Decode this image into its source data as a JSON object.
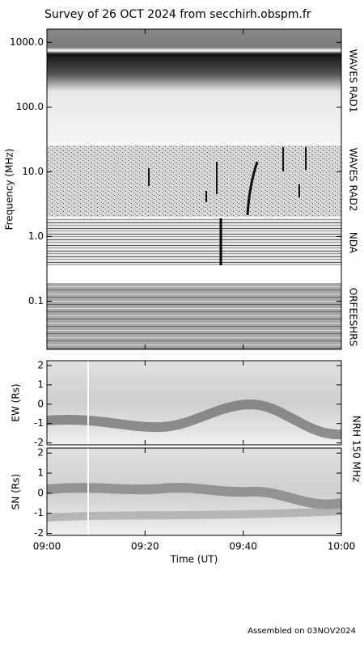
{
  "chart_data": {
    "type": "spectrogram",
    "title": "Survey of 26 OCT 2024 from secchirh.obspm.fr",
    "xlabel": "Time (UT)",
    "xlim": [
      "09:00",
      "10:00"
    ],
    "xticks": [
      "09:00",
      "09:20",
      "09:40",
      "10:00"
    ],
    "panels": [
      {
        "ylabel": "Frequency (MHz)",
        "log": true,
        "ylim": [
          0.018,
          1600
        ],
        "yticks": [
          0.1,
          {
            "value": 1,
            "label": "1.0"
          },
          {
            "value": 10,
            "label": "10.0"
          },
          {
            "value": 100,
            "label": "100.0"
          },
          {
            "value": 1000,
            "label": "1000.0"
          }
        ],
        "instruments": [
          "WAVES RAD1",
          "WAVES RAD2",
          "NDA",
          "ORFEESHRS"
        ]
      },
      {
        "ylabel": "EW (Rs)",
        "log": false,
        "ylim": [
          -2.1,
          2.25
        ],
        "yticks": [
          -2,
          -1,
          0,
          1,
          2
        ]
      },
      {
        "ylabel": "SN (Rs)",
        "log": false,
        "ylim": [
          -2.1,
          2.25
        ],
        "yticks": [
          -2,
          -1,
          0,
          1,
          2
        ]
      }
    ],
    "nrh_label": "NRH 150 MHz",
    "footer": "Assembled on 03NOV2024"
  }
}
